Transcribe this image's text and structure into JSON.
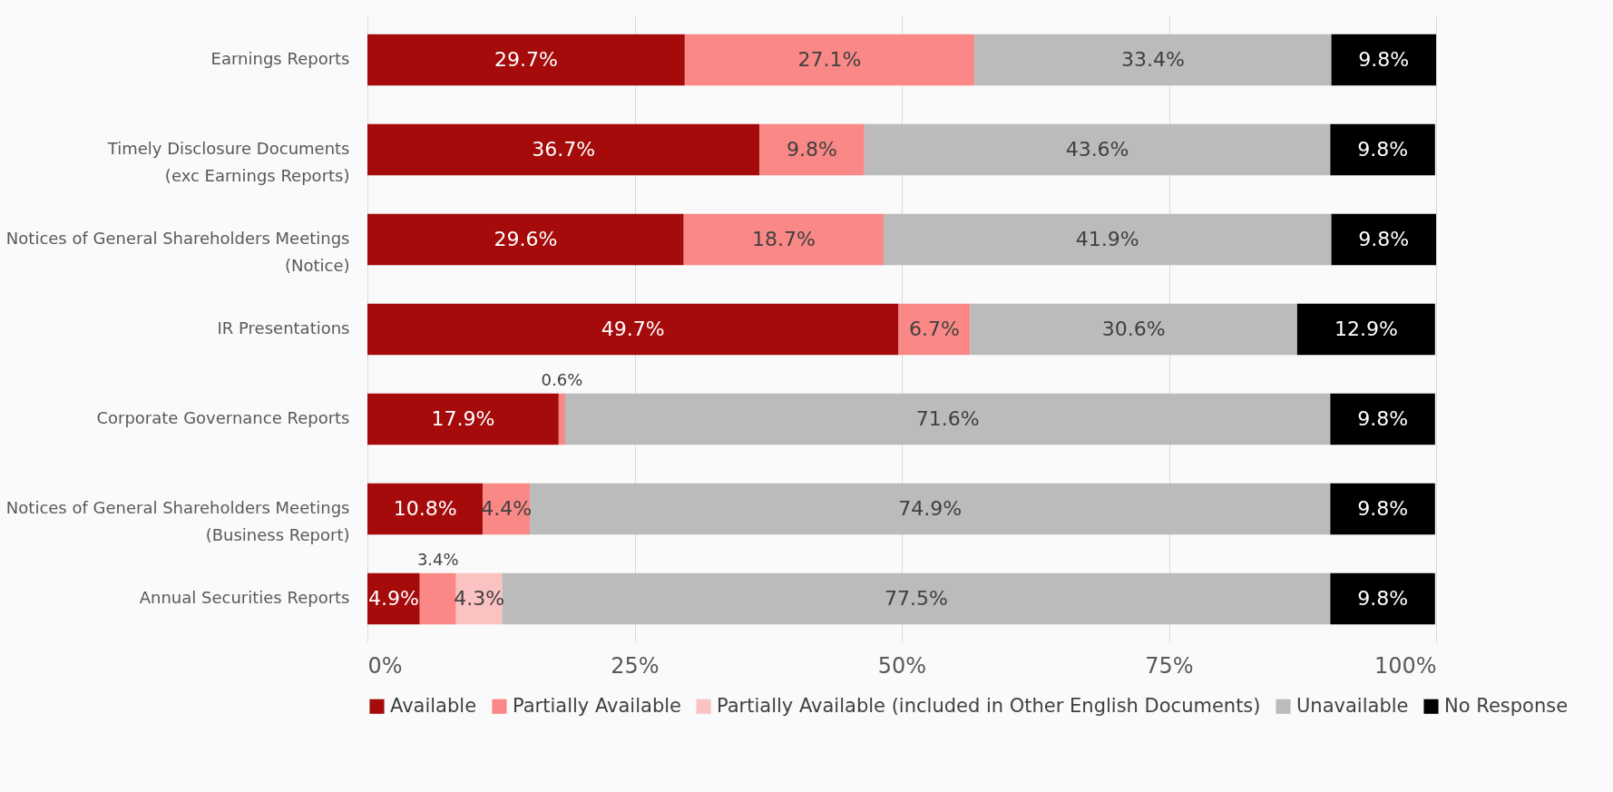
{
  "chart_data": {
    "type": "bar",
    "orientation": "horizontal",
    "stacked": true,
    "categories": [
      "Earnings Reports",
      "Timely Disclosure Documents\n(exc Earnings Reports)",
      "Notices of General Shareholders Meetings\n(Notice)",
      "IR Presentations",
      "Corporate Governance Reports",
      "Notices of General Shareholders Meetings\n(Business Report)",
      "Annual Securities Reports"
    ],
    "series": [
      {
        "name": "Available",
        "color": "#a50b0b",
        "values": [
          29.7,
          36.7,
          29.6,
          49.7,
          17.9,
          10.8,
          4.9
        ],
        "value_labels": [
          "29.7%",
          "36.7%",
          "29.6%",
          "49.7%",
          "17.9%",
          "10.8%",
          "4.9%"
        ]
      },
      {
        "name": "Partially Available",
        "color": "#f98886",
        "values": [
          27.1,
          9.8,
          18.7,
          6.7,
          0.6,
          4.4,
          3.4
        ],
        "value_labels": [
          "27.1%",
          "9.8%",
          "18.7%",
          "6.7%",
          "0.6%",
          "4.4%",
          "3.4%"
        ]
      },
      {
        "name": "Partially Available (included in Other English Documents)",
        "color": "#fbc2c2",
        "values": [
          null,
          null,
          null,
          null,
          null,
          null,
          4.3
        ],
        "value_labels": [
          null,
          null,
          null,
          null,
          null,
          null,
          "4.3%"
        ]
      },
      {
        "name": "Unavailable",
        "color": "#bbbbbb",
        "values": [
          33.4,
          43.6,
          41.9,
          30.6,
          71.6,
          74.9,
          77.5
        ],
        "value_labels": [
          "33.4%",
          "43.6%",
          "41.9%",
          "30.6%",
          "71.6%",
          "74.9%",
          "77.5%"
        ]
      },
      {
        "name": "No Response",
        "color": "#000000",
        "values": [
          9.8,
          9.8,
          9.8,
          12.9,
          9.8,
          9.8,
          9.8
        ],
        "value_labels": [
          "9.8%",
          "9.8%",
          "9.8%",
          "12.9%",
          "9.8%",
          "9.8%",
          "9.8%"
        ]
      }
    ],
    "xlim": [
      0,
      100
    ],
    "xticks": [
      {
        "value": 0,
        "label": "0%"
      },
      {
        "value": 25,
        "label": "25%"
      },
      {
        "value": 50,
        "label": "50%"
      },
      {
        "value": 75,
        "label": "75%"
      },
      {
        "value": 100,
        "label": "100%"
      }
    ],
    "grid": "x",
    "legend": "bottom"
  }
}
